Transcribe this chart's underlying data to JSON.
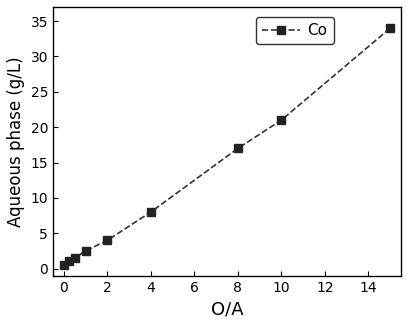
{
  "x": [
    0,
    0.25,
    0.5,
    1,
    2,
    4,
    8,
    10,
    15
  ],
  "y": [
    0.5,
    1.0,
    1.5,
    2.5,
    4.0,
    8.0,
    17.0,
    21.0,
    34.0
  ],
  "line_color": "#333333",
  "marker": "s",
  "marker_color": "#222222",
  "marker_size": 6,
  "legend_label": "Co",
  "xlabel": "O/A",
  "ylabel": "Aqueous phase (g/L)",
  "xlim": [
    -0.5,
    15.5
  ],
  "ylim": [
    -1,
    37
  ],
  "xticks": [
    0,
    2,
    4,
    6,
    8,
    10,
    12,
    14
  ],
  "yticks": [
    0,
    5,
    10,
    15,
    20,
    25,
    30,
    35
  ],
  "xlabel_fontsize": 13,
  "ylabel_fontsize": 12,
  "tick_fontsize": 10,
  "legend_fontsize": 11,
  "background_color": "#ffffff",
  "axis_color": "#000000"
}
